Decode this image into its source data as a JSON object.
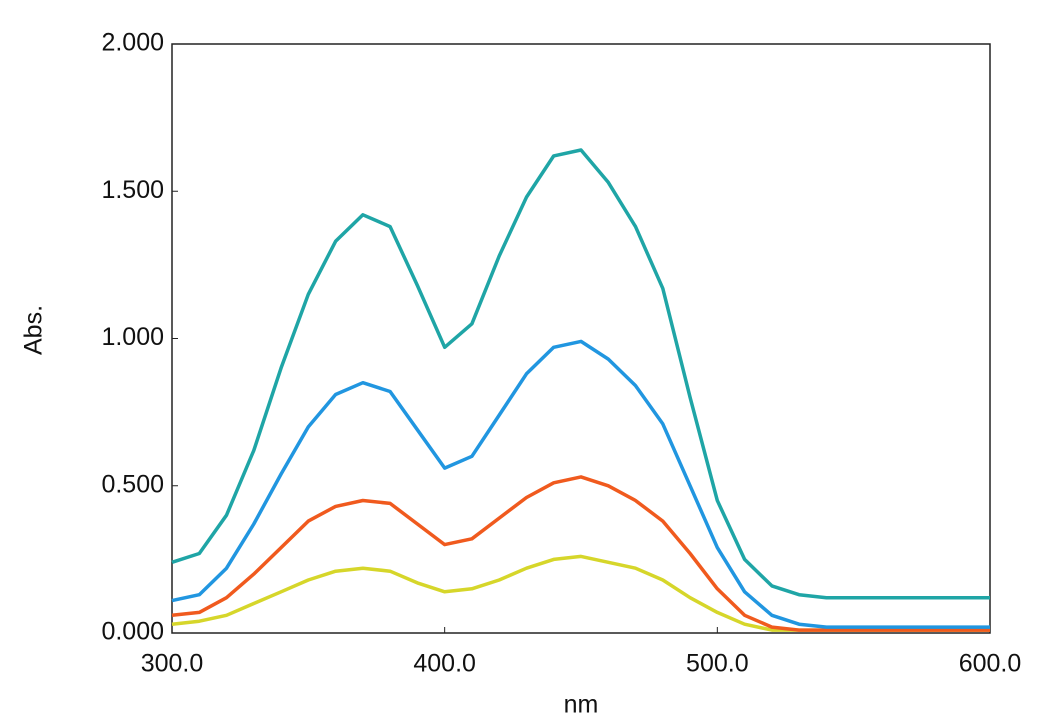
{
  "chart_data": {
    "type": "line",
    "x_label": "nm",
    "y_label": "Abs.",
    "x": [
      300,
      310,
      320,
      330,
      340,
      350,
      360,
      370,
      380,
      390,
      400,
      410,
      420,
      430,
      440,
      450,
      460,
      470,
      480,
      490,
      500,
      510,
      520,
      530,
      540,
      550,
      560,
      570,
      580,
      590,
      600
    ],
    "series": [
      {
        "color": "#1fa5a6",
        "values": [
          0.24,
          0.27,
          0.4,
          0.62,
          0.9,
          1.15,
          1.33,
          1.42,
          1.38,
          1.18,
          0.97,
          1.05,
          1.28,
          1.48,
          1.62,
          1.64,
          1.53,
          1.38,
          1.17,
          0.8,
          0.45,
          0.25,
          0.16,
          0.13,
          0.12,
          0.12,
          0.12,
          0.12,
          0.12,
          0.12,
          0.12
        ]
      },
      {
        "color": "#2196e0",
        "values": [
          0.11,
          0.13,
          0.22,
          0.37,
          0.54,
          0.7,
          0.81,
          0.85,
          0.82,
          0.69,
          0.56,
          0.6,
          0.74,
          0.88,
          0.97,
          0.99,
          0.93,
          0.84,
          0.71,
          0.5,
          0.29,
          0.14,
          0.06,
          0.03,
          0.02,
          0.02,
          0.02,
          0.02,
          0.02,
          0.02,
          0.02
        ]
      },
      {
        "color": "#f05a1e",
        "values": [
          0.06,
          0.07,
          0.12,
          0.2,
          0.29,
          0.38,
          0.43,
          0.45,
          0.44,
          0.37,
          0.3,
          0.32,
          0.39,
          0.46,
          0.51,
          0.53,
          0.5,
          0.45,
          0.38,
          0.27,
          0.15,
          0.06,
          0.02,
          0.01,
          0.01,
          0.01,
          0.01,
          0.01,
          0.01,
          0.01,
          0.01
        ]
      },
      {
        "color": "#d6d62a",
        "values": [
          0.03,
          0.04,
          0.06,
          0.1,
          0.14,
          0.18,
          0.21,
          0.22,
          0.21,
          0.17,
          0.14,
          0.15,
          0.18,
          0.22,
          0.25,
          0.26,
          0.24,
          0.22,
          0.18,
          0.12,
          0.07,
          0.03,
          0.01,
          0.01,
          0.01,
          0.01,
          0.01,
          0.01,
          0.01,
          0.01,
          0.01
        ]
      }
    ],
    "xlim": [
      300,
      600
    ],
    "xticks": [
      {
        "value": 300,
        "label": "300.0"
      },
      {
        "value": 400,
        "label": "400.0"
      },
      {
        "value": 500,
        "label": "500.0"
      },
      {
        "value": 600,
        "label": "600.0"
      }
    ],
    "ylim": [
      0,
      2
    ],
    "yticks": [
      {
        "value": 0,
        "label": "0.000"
      },
      {
        "value": 0.5,
        "label": "0.500"
      },
      {
        "value": 1,
        "label": "1.000"
      },
      {
        "value": 1.5,
        "label": "1.500"
      },
      {
        "value": 2,
        "label": "2.000"
      }
    ]
  }
}
